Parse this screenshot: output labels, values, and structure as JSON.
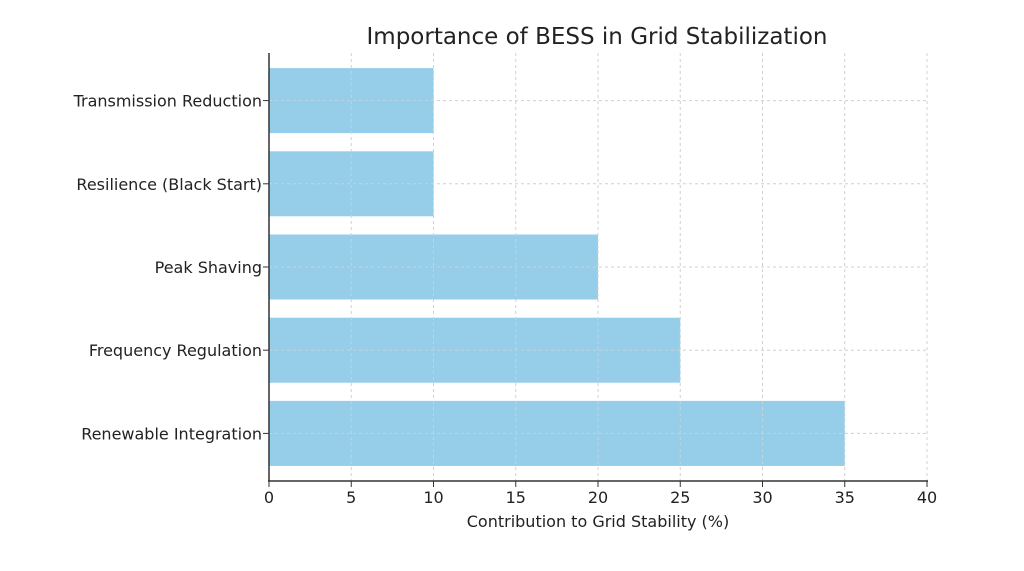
{
  "chart_data": {
    "type": "bar",
    "orientation": "horizontal",
    "title": "Importance of BESS in Grid Stabilization",
    "xlabel": "Contribution to Grid Stability (%)",
    "ylabel": "",
    "categories": [
      "Renewable Integration",
      "Frequency Regulation",
      "Peak Shaving",
      "Resilience (Black Start)",
      "Transmission Reduction"
    ],
    "values": [
      35,
      25,
      20,
      10,
      10
    ],
    "xlim": [
      0,
      40
    ],
    "xticks": [
      0,
      5,
      10,
      15,
      20,
      25,
      30,
      35,
      40
    ],
    "grid": true,
    "bar_color": "#96cde8"
  }
}
